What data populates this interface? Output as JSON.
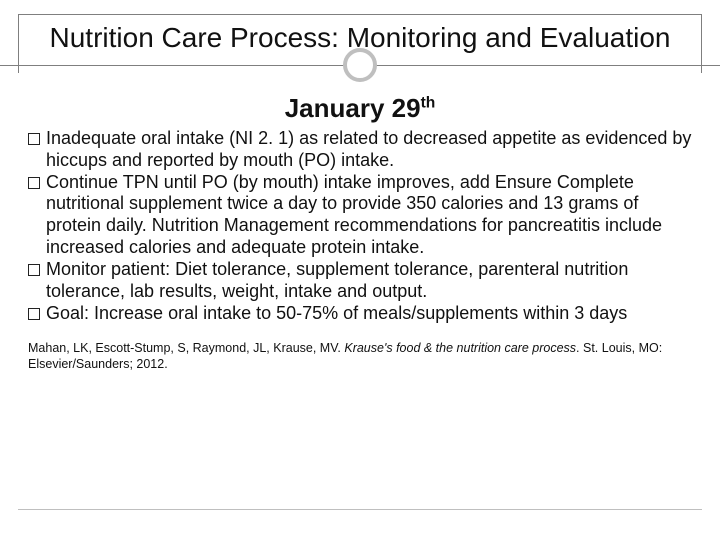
{
  "colors": {
    "border": "#7f7f7f",
    "circle_border": "#bfbfbf",
    "footer_line": "#bfbfbf",
    "text": "#111111",
    "background": "#ffffff",
    "bullet_box_border": "#222222"
  },
  "typography": {
    "title_fontsize": 28,
    "subtitle_fontsize": 26,
    "body_fontsize": 18,
    "citation_fontsize": 12.5,
    "font_family": "Arial"
  },
  "title": "Nutrition Care Process:  Monitoring and Evaluation",
  "subtitle_main": "January 29",
  "subtitle_sup": "th",
  "bullets": [
    "Inadequate oral intake (NI 2. 1) as related to decreased appetite as evidenced by hiccups and reported by mouth (PO) intake.",
    "Continue TPN until PO (by mouth) intake improves, add Ensure Complete nutritional supplement twice a day to provide 350 calories and 13 grams of protein daily.  Nutrition Management recommendations for pancreatitis include increased calories and adequate protein intake.",
    "Monitor patient:  Diet tolerance, supplement tolerance, parenteral nutrition tolerance, lab results, weight, intake and output.",
    "Goal:  Increase oral intake to 50-75% of meals/supplements within 3 days"
  ],
  "citation": {
    "authors": "Mahan, LK, Escott-Stump, S, Raymond, JL, Krause, MV. ",
    "title_italic": "Krause's food & the nutrition care process",
    "rest": ". St. Louis, MO: Elsevier/Saunders; 2012."
  }
}
